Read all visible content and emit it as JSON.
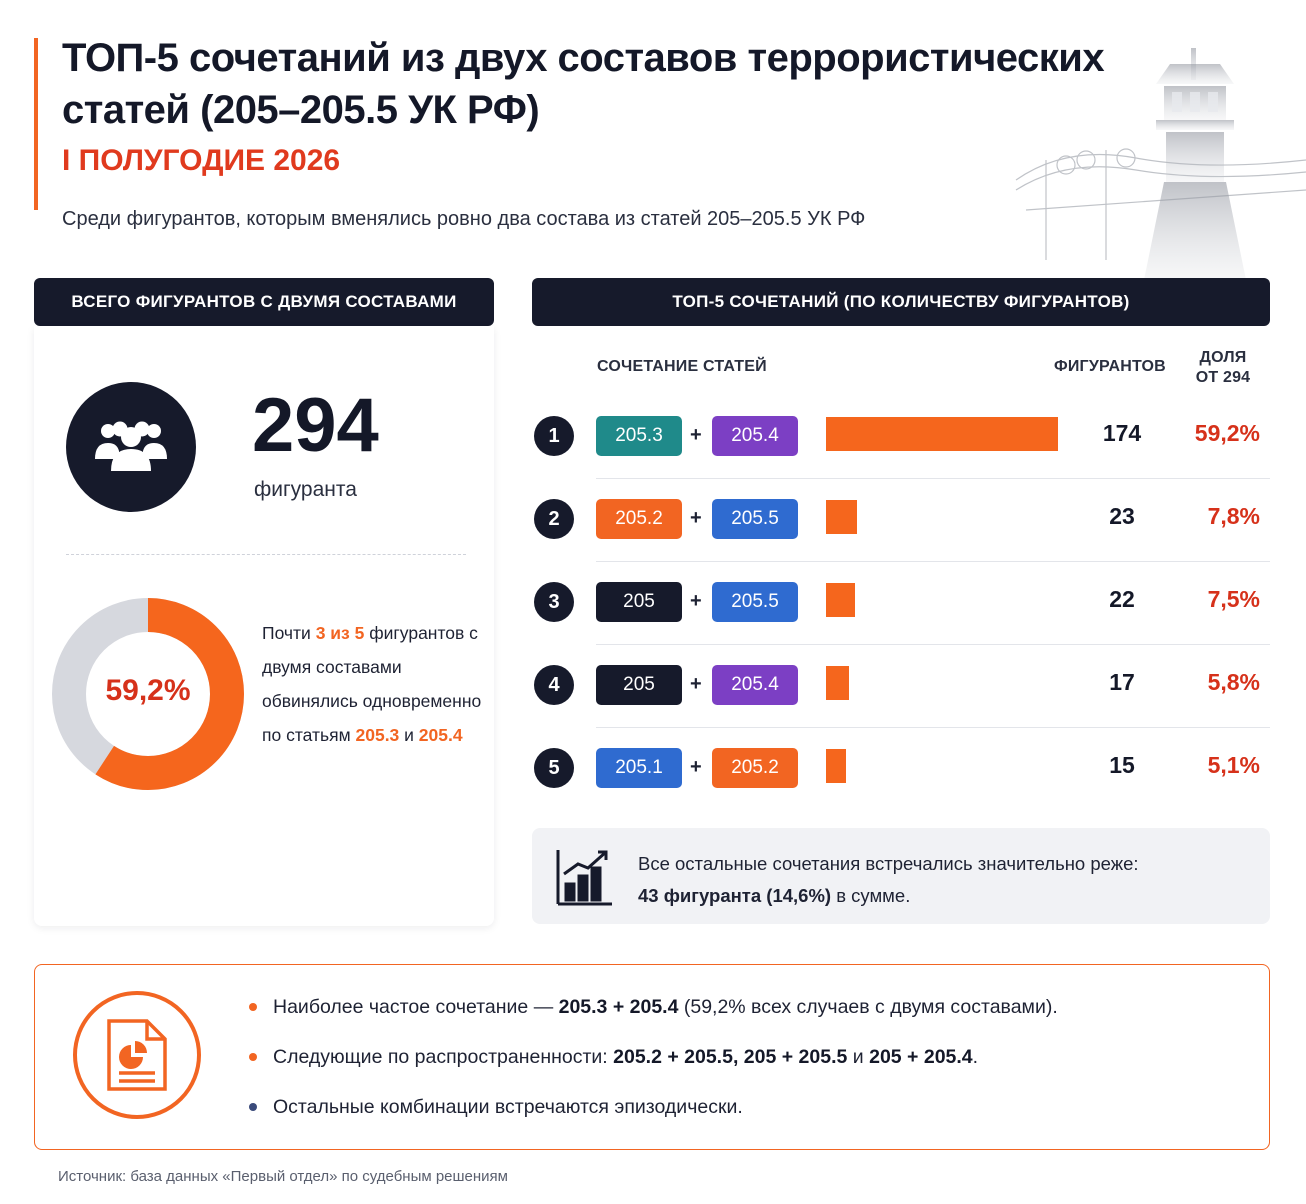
{
  "header": {
    "title": "ТОП-5 сочетаний из двух составов террористических статей (205–205.5 УК РФ)",
    "period": "I ПОЛУГОДИЕ 2026",
    "subtitle": "Среди фигурантов, которым вменялись ровно два состава из статей 205–205.5 УК РФ"
  },
  "left_panel": {
    "heading": "ВСЕГО ФИГУРАНТОВ С ДВУМЯ СОСТАВАМИ",
    "total": "294",
    "total_label": "фигуранта",
    "donut_label": "59,2%",
    "donut_fraction": 0.592,
    "text_before": "Почти ",
    "text_hl1": "3 из 5",
    "text_middle": " фигурантов с двумя составами обвинялись одновременно по статьям ",
    "text_hl2": "205.3",
    "text_and": " и ",
    "text_hl3": "205.4"
  },
  "right_panel": {
    "heading": "ТОП-5 СОЧЕТАНИЙ (ПО КОЛИЧЕСТВУ ФИГУРАНТОВ)",
    "col_combo": "СОЧЕТАНИЕ СТАТЕЙ",
    "col_count": "ФИГУРАНТОВ",
    "col_share_line1": "ДОЛЯ",
    "col_share_line2": "ОТ 294",
    "plus": "+"
  },
  "chart_data": {
    "type": "bar",
    "categories": [
      "205.3 + 205.4",
      "205.2 + 205.5",
      "205 + 205.5",
      "205 + 205.4",
      "205.1 + 205.2"
    ],
    "rows": [
      {
        "rank": "1",
        "a": "205.3",
        "b": "205.4",
        "a_color": "#1f8a8a",
        "b_color": "#7c3fc4",
        "value": 174,
        "share": "59,2%"
      },
      {
        "rank": "2",
        "a": "205.2",
        "b": "205.5",
        "a_color": "#f26522",
        "b_color": "#2f6bd0",
        "value": 23,
        "share": "7,8%"
      },
      {
        "rank": "3",
        "a": "205",
        "b": "205.5",
        "a_color": "#161a2b",
        "b_color": "#2f6bd0",
        "value": 22,
        "share": "7,5%"
      },
      {
        "rank": "4",
        "a": "205",
        "b": "205.4",
        "a_color": "#161a2b",
        "b_color": "#7c3fc4",
        "value": 17,
        "share": "5,8%"
      },
      {
        "rank": "5",
        "a": "205.1",
        "b": "205.2",
        "a_color": "#2f6bd0",
        "b_color": "#f26522",
        "value": 15,
        "share": "5,1%"
      }
    ],
    "values": [
      174,
      23,
      22,
      17,
      15
    ],
    "xlim": [
      0,
      174
    ]
  },
  "note": {
    "line1": "Все остальные сочетания встречались значительно реже:",
    "line2_bold": "43 фигуранта (14,6%)",
    "line2_rest": " в сумме."
  },
  "summary": {
    "b1_pre": "Наиболее частое сочетание — ",
    "b1_bold": "205.3 + 205.4",
    "b1_post": " (59,2% всех случаев с двумя составами).",
    "b2_pre": "Следующие по распространенности: ",
    "b2_bold1": "205.2 + 205.5",
    "b2_sep1": ", ",
    "b2_bold2": "205 + 205.5",
    "b2_sep2": " и ",
    "b2_bold3": "205 + 205.4",
    "b2_post": ".",
    "b3": "Остальные комбинации встречаются эпизодически."
  },
  "source": "Источник: база данных «Первый отдел» по судебным решениям",
  "colors": {
    "accent": "#f26522",
    "dark": "#161a2b",
    "red": "#d6311a",
    "bar": "#f5661d"
  }
}
